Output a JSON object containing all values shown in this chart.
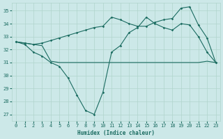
{
  "bg_color": "#cce8e8",
  "grid_color": "#b0d4cc",
  "line_color": "#1a6b60",
  "xlabel": "Humidex (Indice chaleur)",
  "xlim": [
    -0.5,
    23.5
  ],
  "ylim": [
    26.5,
    35.6
  ],
  "xticks": [
    0,
    1,
    2,
    3,
    4,
    5,
    6,
    7,
    8,
    9,
    10,
    11,
    12,
    13,
    14,
    15,
    16,
    17,
    18,
    19,
    20,
    21,
    22,
    23
  ],
  "yticks": [
    27,
    28,
    29,
    30,
    31,
    32,
    33,
    34,
    35
  ],
  "series1_y": [
    32.6,
    32.5,
    32.4,
    32.5,
    32.7,
    32.9,
    33.1,
    33.3,
    33.5,
    33.7,
    33.8,
    34.5,
    34.3,
    34.0,
    33.8,
    33.8,
    34.1,
    34.3,
    34.4,
    35.2,
    35.3,
    33.9,
    32.9,
    31.0
  ],
  "series2_y": [
    32.6,
    32.4,
    31.8,
    31.5,
    31.0,
    30.7,
    29.8,
    28.5,
    27.3,
    27.0,
    28.7,
    31.8,
    32.3,
    33.3,
    33.7,
    34.5,
    34.0,
    33.7,
    33.5,
    34.0,
    33.9,
    33.0,
    31.8,
    31.0
  ],
  "series3_y": [
    32.6,
    32.5,
    32.4,
    32.3,
    31.1,
    31.0,
    31.0,
    31.0,
    31.0,
    31.0,
    31.0,
    31.0,
    31.0,
    31.0,
    31.0,
    31.0,
    31.0,
    31.0,
    31.0,
    31.0,
    31.0,
    31.0,
    31.1,
    31.0
  ]
}
